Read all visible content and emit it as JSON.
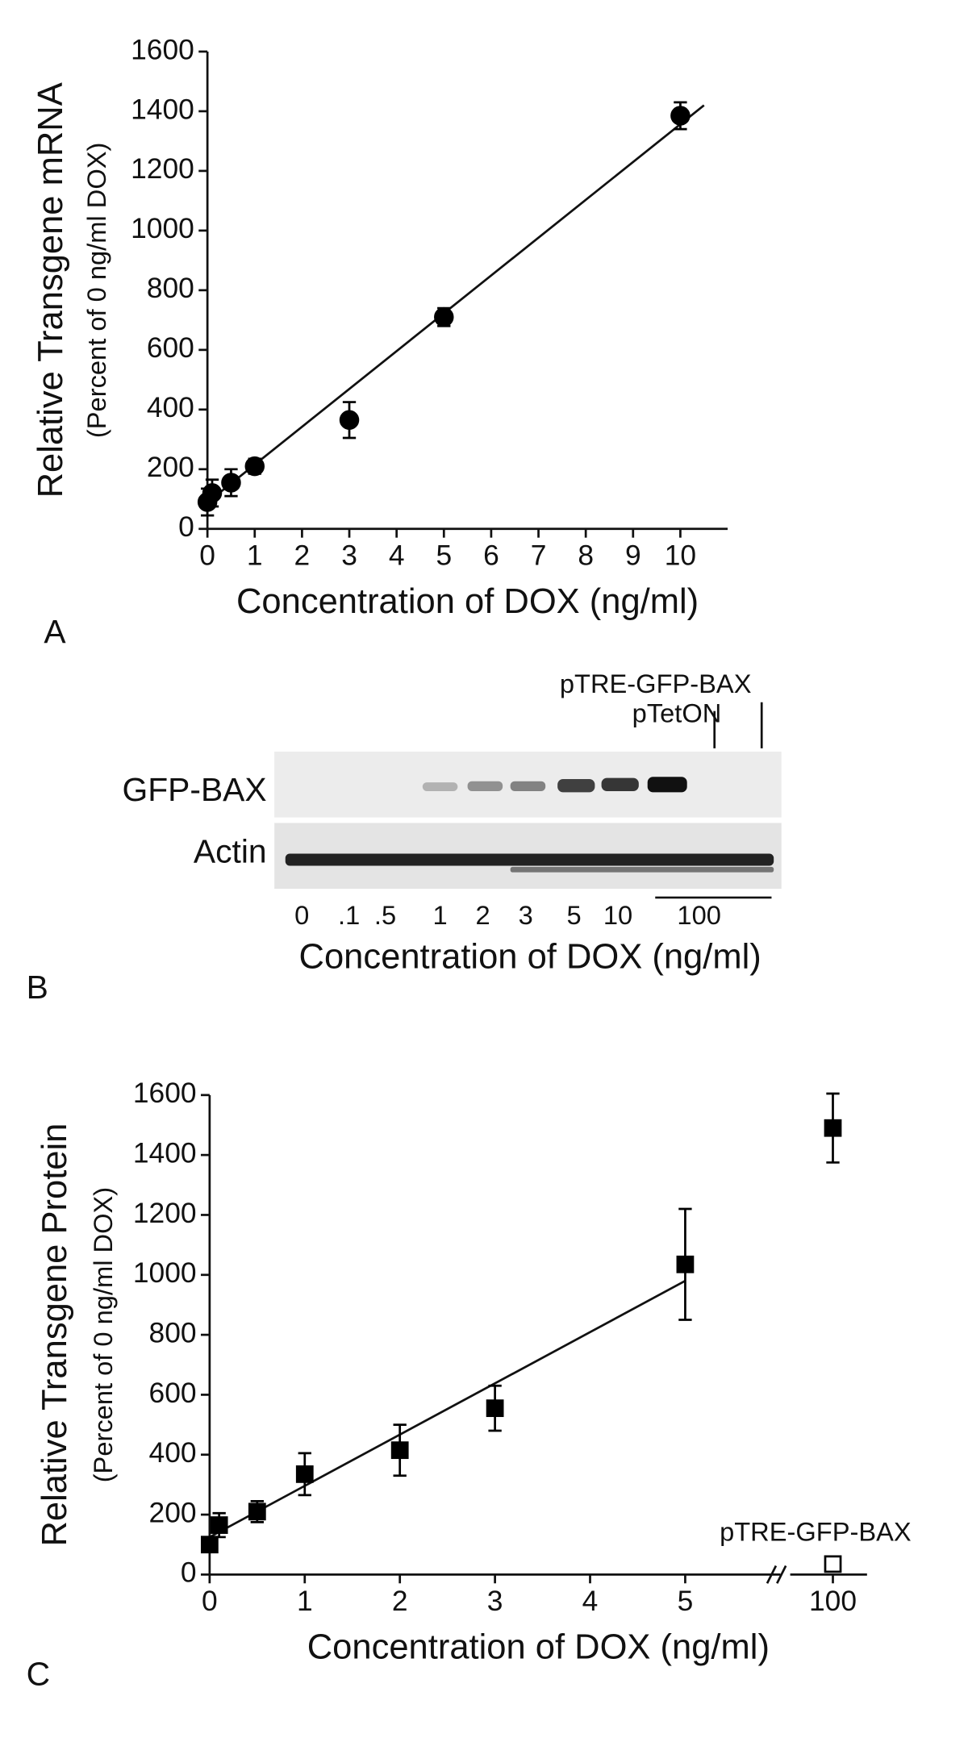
{
  "chart_data": [
    {
      "type": "scatter",
      "panel_label": "A",
      "xlabel": "Concentration of DOX (ng/ml)",
      "ylabel": "Relative Transgene mRNA",
      "ylabel2": "(Percent of 0 ng/ml DOX)",
      "xlim": [
        0,
        11
      ],
      "xticks": [
        0,
        1,
        2,
        3,
        4,
        5,
        6,
        7,
        8,
        9,
        10
      ],
      "ylim": [
        0,
        1600
      ],
      "yticks": [
        0,
        200,
        400,
        600,
        800,
        1000,
        1200,
        1400,
        1600
      ],
      "series": [
        {
          "marker": "circle",
          "filled": true,
          "color": "#000000",
          "x": [
            0,
            0.1,
            0.5,
            1,
            3,
            5,
            10
          ],
          "values": [
            90,
            120,
            155,
            210,
            365,
            710,
            1385
          ],
          "errors": [
            45,
            45,
            45,
            25,
            60,
            30,
            45
          ]
        }
      ],
      "fit": {
        "x": [
          0.05,
          10.5
        ],
        "values": [
          95,
          1420
        ]
      }
    },
    {
      "type": "scatter",
      "panel_label": "C",
      "xlabel": "Concentration of DOX (ng/ml)",
      "ylabel": "Relative Transgene Protein",
      "ylabel2": "(Percent of 0 ng/ml DOX)",
      "xlim": [
        0,
        6
      ],
      "xticks": [
        0,
        1,
        2,
        3,
        4,
        5
      ],
      "xlim2": [
        99.5,
        100.4
      ],
      "xticks2": [
        100
      ],
      "axis_break": true,
      "ylim": [
        0,
        1600
      ],
      "yticks": [
        0,
        200,
        400,
        600,
        800,
        1000,
        1200,
        1400,
        1600
      ],
      "series": [
        {
          "marker": "square",
          "filled": true,
          "color": "#000000",
          "x": [
            0,
            0.1,
            0.5,
            1,
            2,
            3,
            5,
            100
          ],
          "values": [
            100,
            165,
            210,
            335,
            415,
            555,
            1035,
            1490
          ],
          "errors": [
            20,
            40,
            35,
            70,
            85,
            75,
            185,
            115
          ]
        },
        {
          "marker": "square",
          "filled": false,
          "color": "#000000",
          "x": [
            100
          ],
          "values": [
            35
          ],
          "errors": [
            10
          ]
        }
      ],
      "annotation": "pTRE-GFP-BAX",
      "fit": {
        "x": [
          0,
          5
        ],
        "values": [
          125,
          980
        ]
      }
    }
  ],
  "blot": {
    "panel_label": "B",
    "construct_1": "pTRE-GFP-BAX",
    "construct_2": "pTetON",
    "rows": [
      "GFP-BAX",
      "Actin"
    ],
    "lanes": [
      "0",
      ".1",
      ".5",
      "1",
      "2",
      "3",
      "5",
      "10",
      "100"
    ],
    "xlabel": "Concentration of DOX (ng/ml)"
  }
}
